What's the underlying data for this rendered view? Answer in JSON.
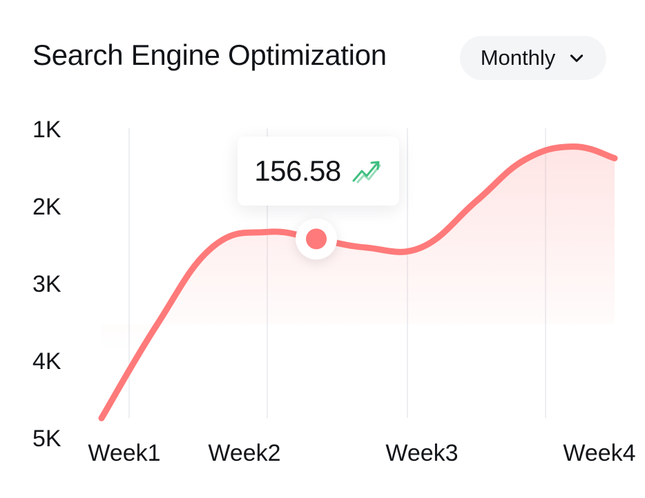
{
  "header": {
    "title": "Search Engine Optimization",
    "period_selector": {
      "value": "Monthly",
      "icon": "chevron-down-icon"
    }
  },
  "tooltip": {
    "value": "156.58",
    "trend_icon": "trend-up-icon",
    "trend_color": "#3fbf7f"
  },
  "colors": {
    "line": "#ff7a7a",
    "area": "#ff7a7a",
    "grid": "#eceef1",
    "marker_ring": "#ffffff",
    "trend": "#3fbf7f"
  },
  "chart_data": {
    "type": "area",
    "y_reversed": true,
    "yticks": [
      "1K",
      "2K",
      "3K",
      "4K",
      "5K"
    ],
    "ylim": [
      1000,
      5000
    ],
    "categories": [
      "Week1",
      "Week2",
      "Week3",
      "Week4"
    ],
    "xlim": [
      0.8,
      4.5
    ],
    "grid": {
      "vertical": true,
      "horizontal": false
    },
    "series": [
      {
        "x": [
          0.8,
          1.2,
          1.6,
          2.0,
          2.35,
          2.7,
          3.1,
          3.5,
          3.85,
          4.2,
          4.5
        ],
        "values": [
          4700,
          3500,
          2500,
          2300,
          2390,
          2500,
          2500,
          1900,
          1370,
          1200,
          1350
        ]
      }
    ],
    "highlight": {
      "x": 2.35,
      "value": 2390,
      "label": "156.58"
    }
  }
}
